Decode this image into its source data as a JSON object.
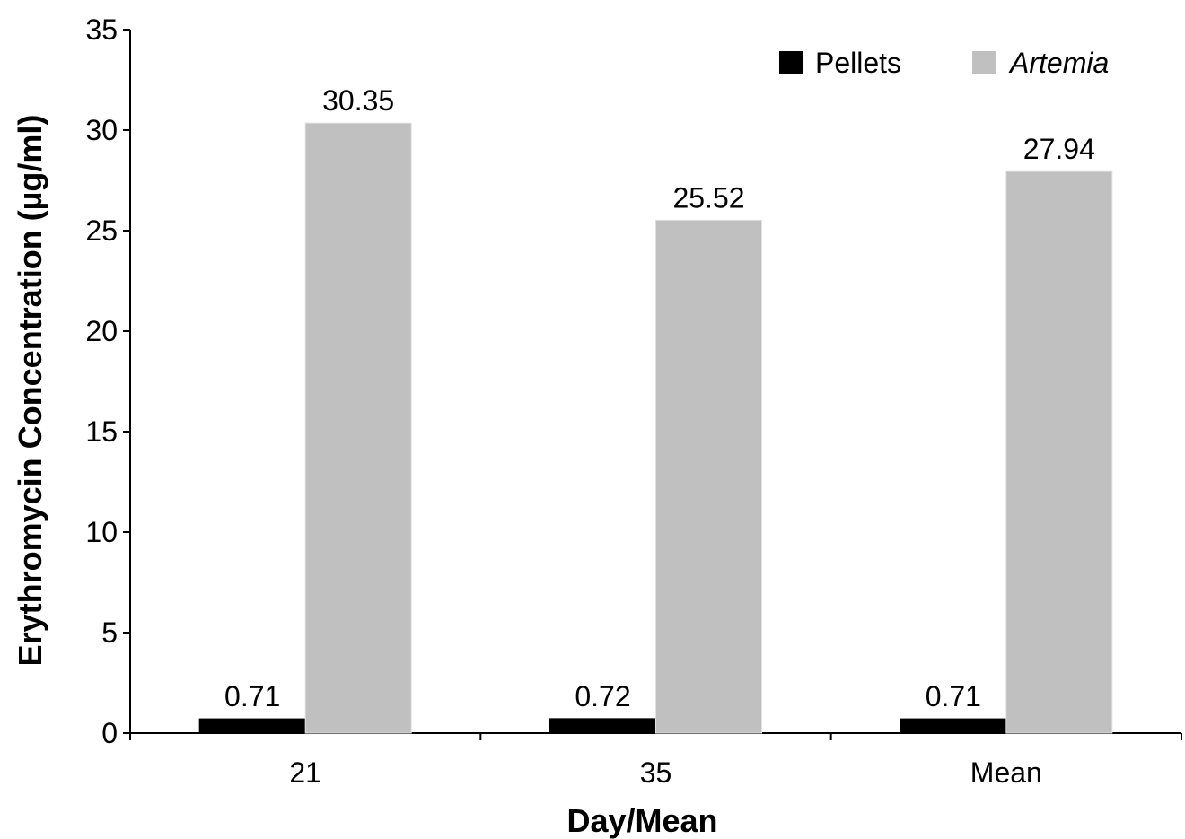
{
  "chart_data": {
    "type": "bar",
    "title": "",
    "xlabel": "Day/Mean",
    "ylabel": "Erythromycin Concentration (µg/ml)",
    "categories": [
      "21",
      "35",
      "Mean"
    ],
    "series": [
      {
        "name": "Pellets",
        "values": [
          0.71,
          0.72,
          0.71
        ],
        "labels": [
          "0.71",
          "0.72",
          "0.71"
        ],
        "color": "#000000",
        "italic": false
      },
      {
        "name": "Artemia",
        "values": [
          30.35,
          25.52,
          27.94
        ],
        "labels": [
          "30.35",
          "25.52",
          "27.94"
        ],
        "color": "#c0c0c0",
        "italic": true
      }
    ],
    "ylim": [
      0,
      35
    ],
    "yticks": [
      0,
      5,
      10,
      15,
      20,
      25,
      30,
      35
    ],
    "grid": false,
    "legend_position": "top-right"
  }
}
